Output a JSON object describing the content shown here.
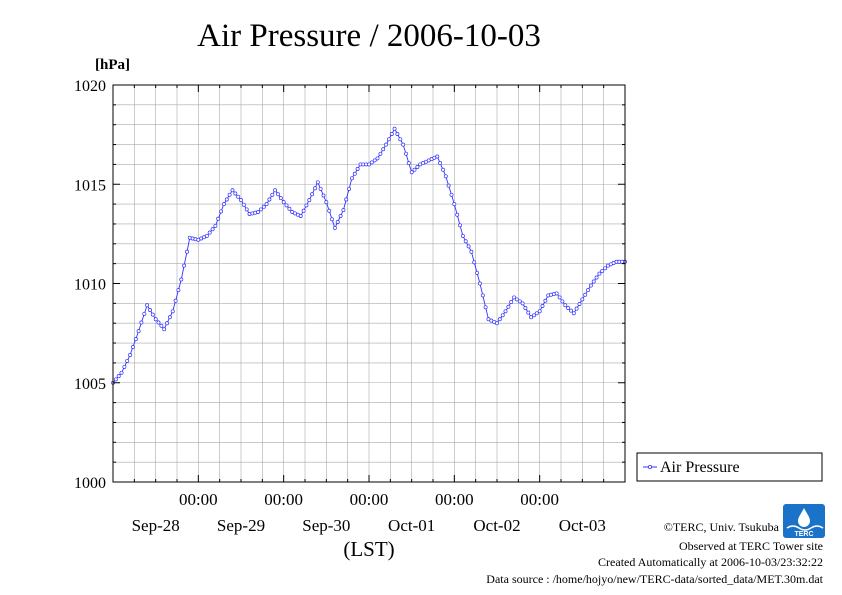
{
  "chart_data": {
    "type": "line",
    "title": "Air Pressure / 2006-10-03",
    "ylabel": "[hPa]",
    "xlabel": "(LST)",
    "ylim": [
      1000,
      1020
    ],
    "yticks": [
      1000,
      1005,
      1010,
      1015,
      1020
    ],
    "grid": true,
    "legend_position": "right-bottom",
    "x_tick_time_label": "00:00",
    "x_day_labels": [
      "Sep-28",
      "Sep-29",
      "Sep-30",
      "Oct-01",
      "Oct-02",
      "Oct-03"
    ],
    "x_range_hours": [
      0,
      144
    ],
    "x_day_start_hours": [
      24,
      48,
      72,
      96,
      120
    ],
    "series": [
      {
        "name": "Air Pressure",
        "color": "#3333ff",
        "points": [
          [
            0.0,
            1005.0
          ],
          [
            2.4,
            1005.5
          ],
          [
            4.8,
            1006.4
          ],
          [
            7.2,
            1007.6
          ],
          [
            9.6,
            1008.9
          ],
          [
            12.0,
            1008.2
          ],
          [
            14.4,
            1007.7
          ],
          [
            16.8,
            1008.6
          ],
          [
            19.2,
            1010.2
          ],
          [
            21.6,
            1012.3
          ],
          [
            24.0,
            1012.2
          ],
          [
            26.4,
            1012.4
          ],
          [
            28.8,
            1012.9
          ],
          [
            31.2,
            1014.0
          ],
          [
            33.6,
            1014.7
          ],
          [
            36.0,
            1014.2
          ],
          [
            38.4,
            1013.5
          ],
          [
            40.8,
            1013.6
          ],
          [
            43.2,
            1014.0
          ],
          [
            45.6,
            1014.7
          ],
          [
            48.0,
            1014.1
          ],
          [
            50.4,
            1013.6
          ],
          [
            52.8,
            1013.4
          ],
          [
            55.2,
            1014.2
          ],
          [
            57.6,
            1015.1
          ],
          [
            60.0,
            1014.1
          ],
          [
            62.4,
            1012.8
          ],
          [
            64.8,
            1013.7
          ],
          [
            67.2,
            1015.3
          ],
          [
            69.6,
            1016.0
          ],
          [
            72.0,
            1016.0
          ],
          [
            74.4,
            1016.3
          ],
          [
            76.8,
            1017.0
          ],
          [
            79.2,
            1017.8
          ],
          [
            81.6,
            1017.0
          ],
          [
            84.0,
            1015.6
          ],
          [
            86.4,
            1016.0
          ],
          [
            88.8,
            1016.2
          ],
          [
            91.2,
            1016.4
          ],
          [
            93.6,
            1015.4
          ],
          [
            96.0,
            1014.0
          ],
          [
            98.4,
            1012.4
          ],
          [
            100.8,
            1011.6
          ],
          [
            103.2,
            1010.0
          ],
          [
            105.6,
            1008.2
          ],
          [
            108.0,
            1008.0
          ],
          [
            110.4,
            1008.6
          ],
          [
            112.8,
            1009.3
          ],
          [
            115.2,
            1009.0
          ],
          [
            117.6,
            1008.3
          ],
          [
            120.0,
            1008.6
          ],
          [
            122.4,
            1009.4
          ],
          [
            124.8,
            1009.5
          ],
          [
            127.2,
            1008.9
          ],
          [
            129.6,
            1008.5
          ],
          [
            132.0,
            1009.2
          ],
          [
            134.4,
            1009.9
          ],
          [
            136.8,
            1010.5
          ],
          [
            139.2,
            1010.9
          ],
          [
            141.6,
            1011.1
          ],
          [
            144.0,
            1011.1
          ]
        ]
      }
    ]
  },
  "credits": {
    "copyright": "©TERC, Univ. Tsukuba",
    "observed": "Observed at TERC Tower site",
    "created": "Created Automatically at 2006-10-03/23:32:22",
    "source": "Data source : /home/hojyo/new/TERC-data/sorted_data/MET.30m.dat"
  },
  "logo": {
    "text": "TERC",
    "icon": "terc-logo-icon",
    "color": "#1a73c8"
  }
}
